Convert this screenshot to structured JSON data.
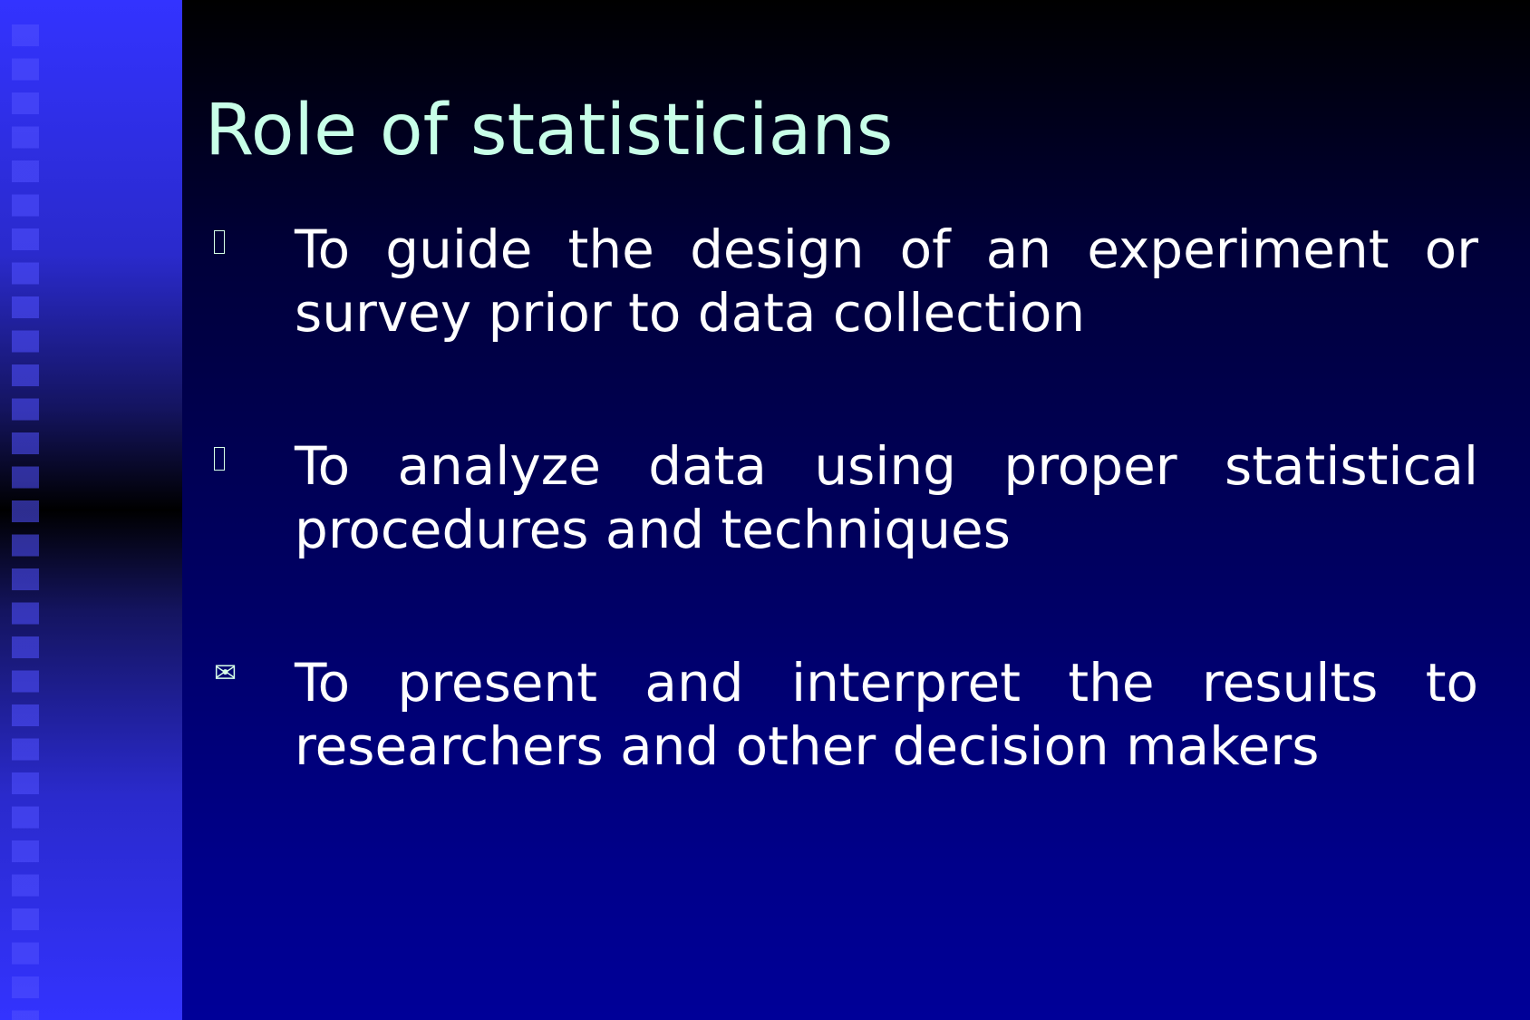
{
  "slide": {
    "title": "Role of statisticians",
    "bullets": [
      {
        "icon": "box-bullet-icon",
        "text": "To guide the design of an experiment or survey prior to data collection"
      },
      {
        "icon": "box-bullet-icon",
        "text": "To analyze data using proper statistical procedures and techniques"
      },
      {
        "icon": "envelope-icon",
        "marker": "✉",
        "text": "To present and interpret the results to researchers and other decision makers"
      }
    ]
  },
  "colors": {
    "title": "#c8ffe8",
    "body_text": "#ffffff",
    "background_top": "#000000",
    "background_bottom": "#000098",
    "side_band": "#3333ff"
  }
}
